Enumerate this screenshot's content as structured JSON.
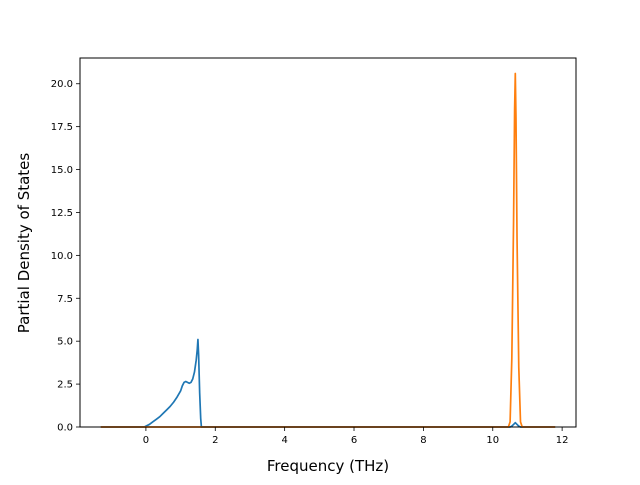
{
  "chart_data": {
    "type": "line",
    "title": "",
    "xlabel": "Frequency (THz)",
    "ylabel": "Partial Density of States",
    "xlim": [
      -1.9,
      12.4
    ],
    "ylim": [
      0,
      21.5
    ],
    "xticks": [
      0,
      2,
      4,
      6,
      8,
      10,
      12
    ],
    "xtick_labels": [
      "0",
      "2",
      "4",
      "6",
      "8",
      "10",
      "12"
    ],
    "yticks": [
      0,
      2.5,
      5,
      7.5,
      10,
      12.5,
      15,
      17.5,
      20
    ],
    "ytick_labels": [
      "0.0",
      "2.5",
      "5.0",
      "7.5",
      "10.0",
      "12.5",
      "15.0",
      "17.5",
      "20.0"
    ],
    "grid": false,
    "legend": "none",
    "series": [
      {
        "color": "#1f77b4",
        "x": [
          -1.3,
          -0.05,
          0.0,
          0.1,
          0.2,
          0.3,
          0.4,
          0.5,
          0.6,
          0.7,
          0.8,
          0.9,
          1.0,
          1.05,
          1.1,
          1.15,
          1.2,
          1.25,
          1.3,
          1.35,
          1.4,
          1.45,
          1.48,
          1.5,
          1.52,
          1.55,
          1.58,
          1.6,
          1.62,
          1.65,
          10.5,
          10.55,
          10.6,
          10.65,
          10.7,
          10.75,
          10.8,
          11.8
        ],
        "y": [
          0,
          0,
          0.05,
          0.15,
          0.3,
          0.45,
          0.6,
          0.8,
          1.0,
          1.2,
          1.45,
          1.75,
          2.1,
          2.4,
          2.6,
          2.65,
          2.6,
          2.55,
          2.6,
          2.8,
          3.2,
          3.9,
          4.5,
          5.1,
          4.2,
          2.0,
          0.5,
          0.0,
          0,
          0,
          0,
          0.05,
          0.15,
          0.25,
          0.15,
          0.05,
          0,
          0
        ]
      },
      {
        "color": "#ff7f0e",
        "x": [
          -1.3,
          10.45,
          10.5,
          10.55,
          10.6,
          10.63,
          10.65,
          10.67,
          10.7,
          10.75,
          10.8,
          10.85,
          11.8
        ],
        "y": [
          0,
          0,
          0.3,
          4.0,
          12.0,
          18.5,
          20.6,
          18.0,
          11.0,
          3.5,
          0.3,
          0,
          0
        ]
      }
    ]
  }
}
